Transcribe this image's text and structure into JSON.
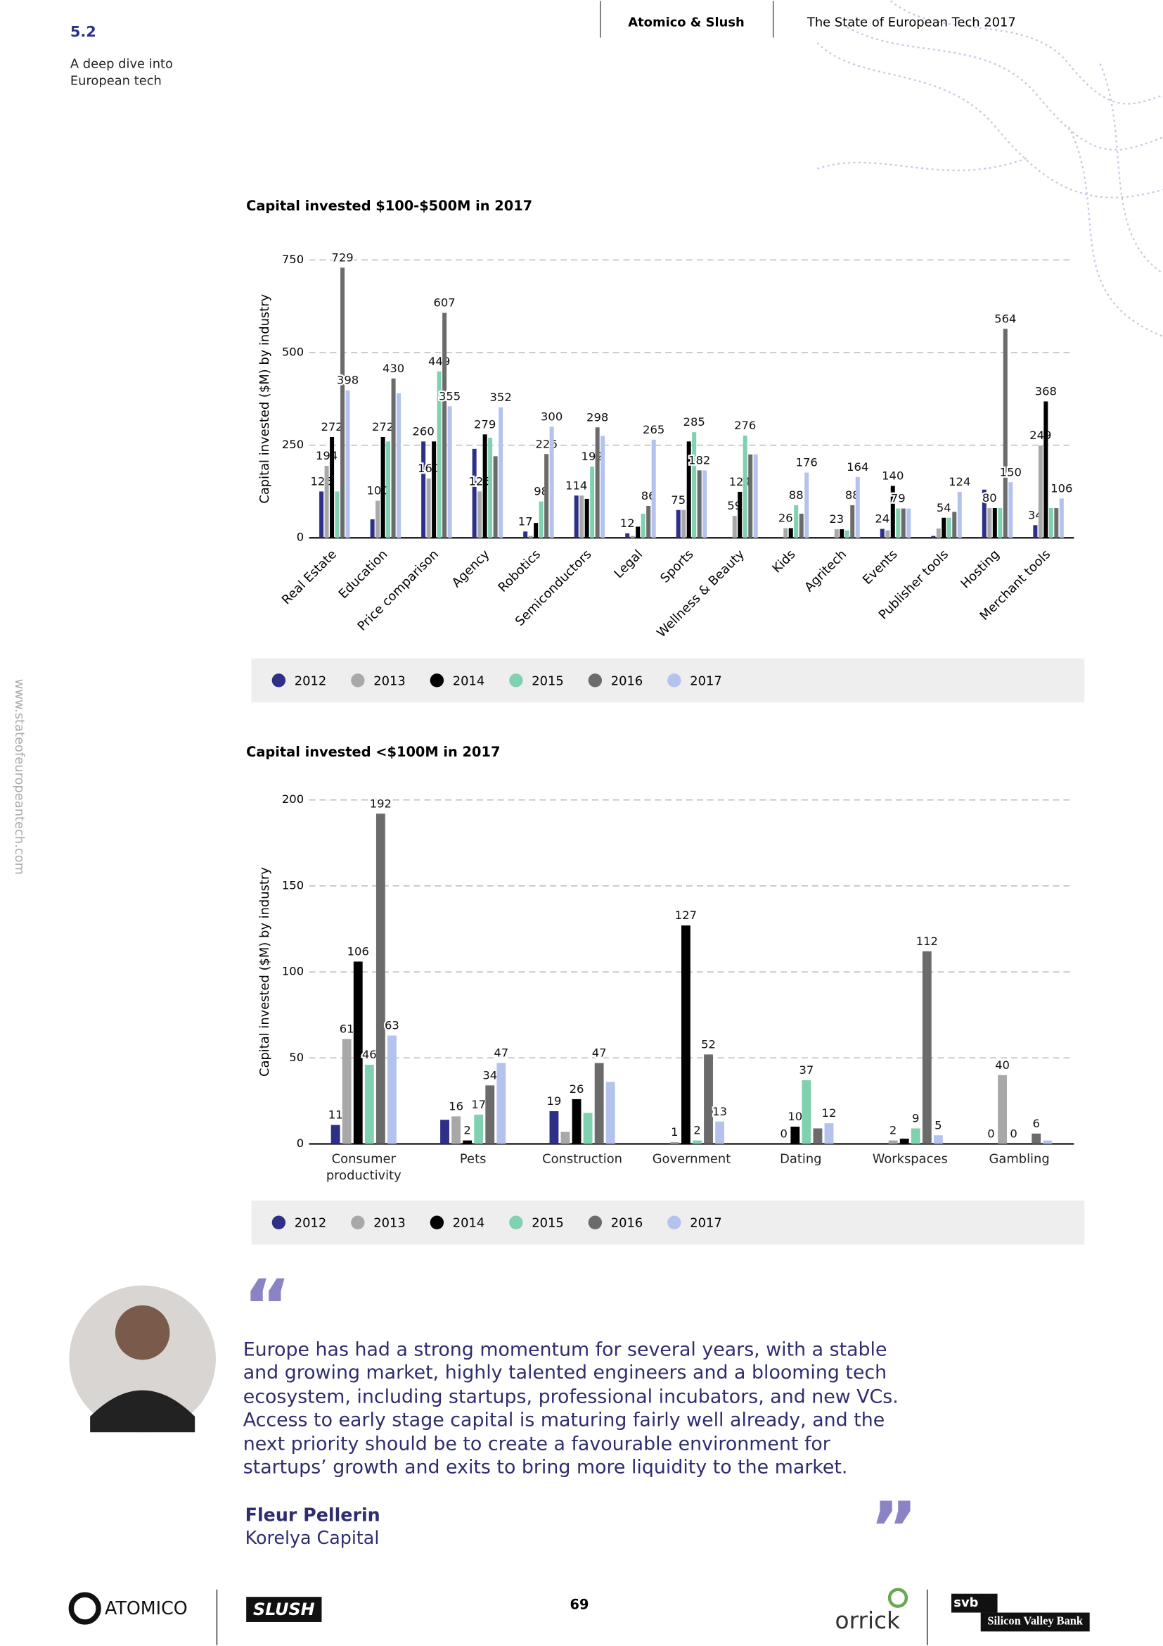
{
  "header": {
    "section": "5.2",
    "subtitle": "A deep dive into European tech",
    "brand": "Atomico & Slush",
    "report": "The State of European Tech 2017"
  },
  "side_url": "www.stateofeuropeantech.com",
  "chart_data": [
    {
      "type": "bar",
      "title": "Capital invested $100-$500M in 2017",
      "y_label": "Capital invested ($M) by industry",
      "categories": [
        "Real Estate",
        "Education",
        "Price comparison",
        "Agency",
        "Robotics",
        "Semiconductors",
        "Legal",
        "Sports",
        "Wellness & Beauty",
        "Kids",
        "Agritech",
        "Events",
        "Publisher tools",
        "Hosting",
        "Merchant tools"
      ],
      "ylim": [
        0,
        750
      ],
      "yticks": [
        0,
        250,
        500,
        750
      ],
      "grid": true,
      "legend": "bottom",
      "series": [
        {
          "name": "2012",
          "color": "#2e3088",
          "values": [
            125,
            50,
            260,
            240,
            17,
            114,
            12,
            75,
            0,
            0,
            0,
            24,
            5,
            130,
            34
          ],
          "value_labels": [
            "125",
            null,
            "260",
            null,
            "17",
            "114",
            "12",
            "75",
            null,
            null,
            null,
            "24",
            null,
            null,
            "34"
          ]
        },
        {
          "name": "2013",
          "color": "#a8a8a8",
          "values": [
            194,
            100,
            160,
            125,
            5,
            114,
            5,
            75,
            59,
            26,
            23,
            20,
            25,
            80,
            249
          ],
          "value_labels": [
            "194",
            "100",
            "160",
            "125",
            null,
            null,
            null,
            null,
            "59",
            "26",
            "23",
            null,
            null,
            "80",
            "249"
          ]
        },
        {
          "name": "2014",
          "color": "#000000",
          "values": [
            272,
            272,
            260,
            279,
            40,
            105,
            30,
            260,
            124,
            26,
            23,
            140,
            54,
            80,
            368
          ],
          "value_labels": [
            "272",
            "272",
            null,
            "279",
            null,
            null,
            null,
            null,
            "124",
            null,
            null,
            "140",
            "54",
            null,
            "368"
          ]
        },
        {
          "name": "2015",
          "color": "#7fd1b0",
          "values": [
            125,
            260,
            449,
            270,
            98,
            192,
            65,
            285,
            276,
            88,
            20,
            79,
            54,
            80,
            80
          ],
          "value_labels": [
            null,
            null,
            "449",
            null,
            "98",
            "192",
            null,
            "285",
            "276",
            "88",
            null,
            "79",
            null,
            null,
            null
          ]
        },
        {
          "name": "2016",
          "color": "#6b6b6b",
          "values": [
            729,
            430,
            607,
            220,
            226,
            298,
            86,
            182,
            225,
            65,
            88,
            79,
            70,
            564,
            80
          ],
          "value_labels": [
            "729",
            "430",
            "607",
            null,
            "226",
            "298",
            "86",
            "182",
            null,
            null,
            "88",
            null,
            null,
            "564",
            null
          ]
        },
        {
          "name": "2017",
          "color": "#b3c3ee",
          "values": [
            398,
            390,
            355,
            352,
            300,
            275,
            265,
            182,
            225,
            176,
            164,
            79,
            124,
            150,
            106
          ],
          "value_labels": [
            "398",
            null,
            "355",
            "352",
            "300",
            null,
            "265",
            null,
            null,
            "176",
            "164",
            null,
            "124",
            "150",
            "106"
          ]
        }
      ]
    },
    {
      "type": "bar",
      "title": "Capital invested <$100M in 2017",
      "y_label": "Capital invested ($M) by industry",
      "categories": [
        "Consumer productivity",
        "Pets",
        "Construction",
        "Government",
        "Dating",
        "Workspaces",
        "Gambling"
      ],
      "ylim": [
        0,
        200
      ],
      "yticks": [
        0,
        50,
        100,
        150,
        200
      ],
      "grid": true,
      "legend": "bottom",
      "series": [
        {
          "name": "2012",
          "color": "#2e3088",
          "values": [
            11,
            14,
            19,
            0,
            0,
            0,
            0
          ],
          "value_labels": [
            "11",
            null,
            "19",
            null,
            null,
            null,
            "0"
          ]
        },
        {
          "name": "2013",
          "color": "#a8a8a8",
          "values": [
            61,
            16,
            7,
            1,
            0,
            2,
            40
          ],
          "value_labels": [
            "61",
            "16",
            null,
            "1",
            "0",
            "2",
            "40"
          ]
        },
        {
          "name": "2014",
          "color": "#000000",
          "values": [
            106,
            2,
            26,
            127,
            10,
            3,
            0
          ],
          "value_labels": [
            "106",
            "2",
            "26",
            "127",
            "10",
            null,
            "0"
          ]
        },
        {
          "name": "2015",
          "color": "#7fd1b0",
          "values": [
            46,
            17,
            18,
            2,
            37,
            9,
            0
          ],
          "value_labels": [
            "46",
            "17",
            null,
            "2",
            "37",
            "9",
            null
          ]
        },
        {
          "name": "2016",
          "color": "#6b6b6b",
          "values": [
            192,
            34,
            47,
            52,
            9,
            112,
            6
          ],
          "value_labels": [
            "192",
            "34",
            "47",
            "52",
            null,
            "112",
            "6"
          ]
        },
        {
          "name": "2017",
          "color": "#b3c3ee",
          "values": [
            63,
            47,
            36,
            13,
            12,
            5,
            2
          ],
          "value_labels": [
            "63",
            "47",
            null,
            "13",
            "12",
            "5",
            null
          ]
        }
      ]
    }
  ],
  "quote": {
    "open": "“",
    "text": "Europe has had a strong momentum for several years, with a stable and growing market, highly talented engineers and a blooming tech ecosystem, including startups, professional incubators, and new VCs. Access to early stage capital is maturing fairly well already, and the next priority should be to create a favourable environment for startups’ growth and exits to bring more liquidity to the market.",
    "close": "”",
    "author": "Fleur Pellerin",
    "company": "Korelya Capital"
  },
  "footer": {
    "atomico": "ATOMICO",
    "slush": "SLUSH",
    "page": "69",
    "orrick": "orrick",
    "svb": "svb",
    "svb_name": "Silicon Valley Bank"
  }
}
